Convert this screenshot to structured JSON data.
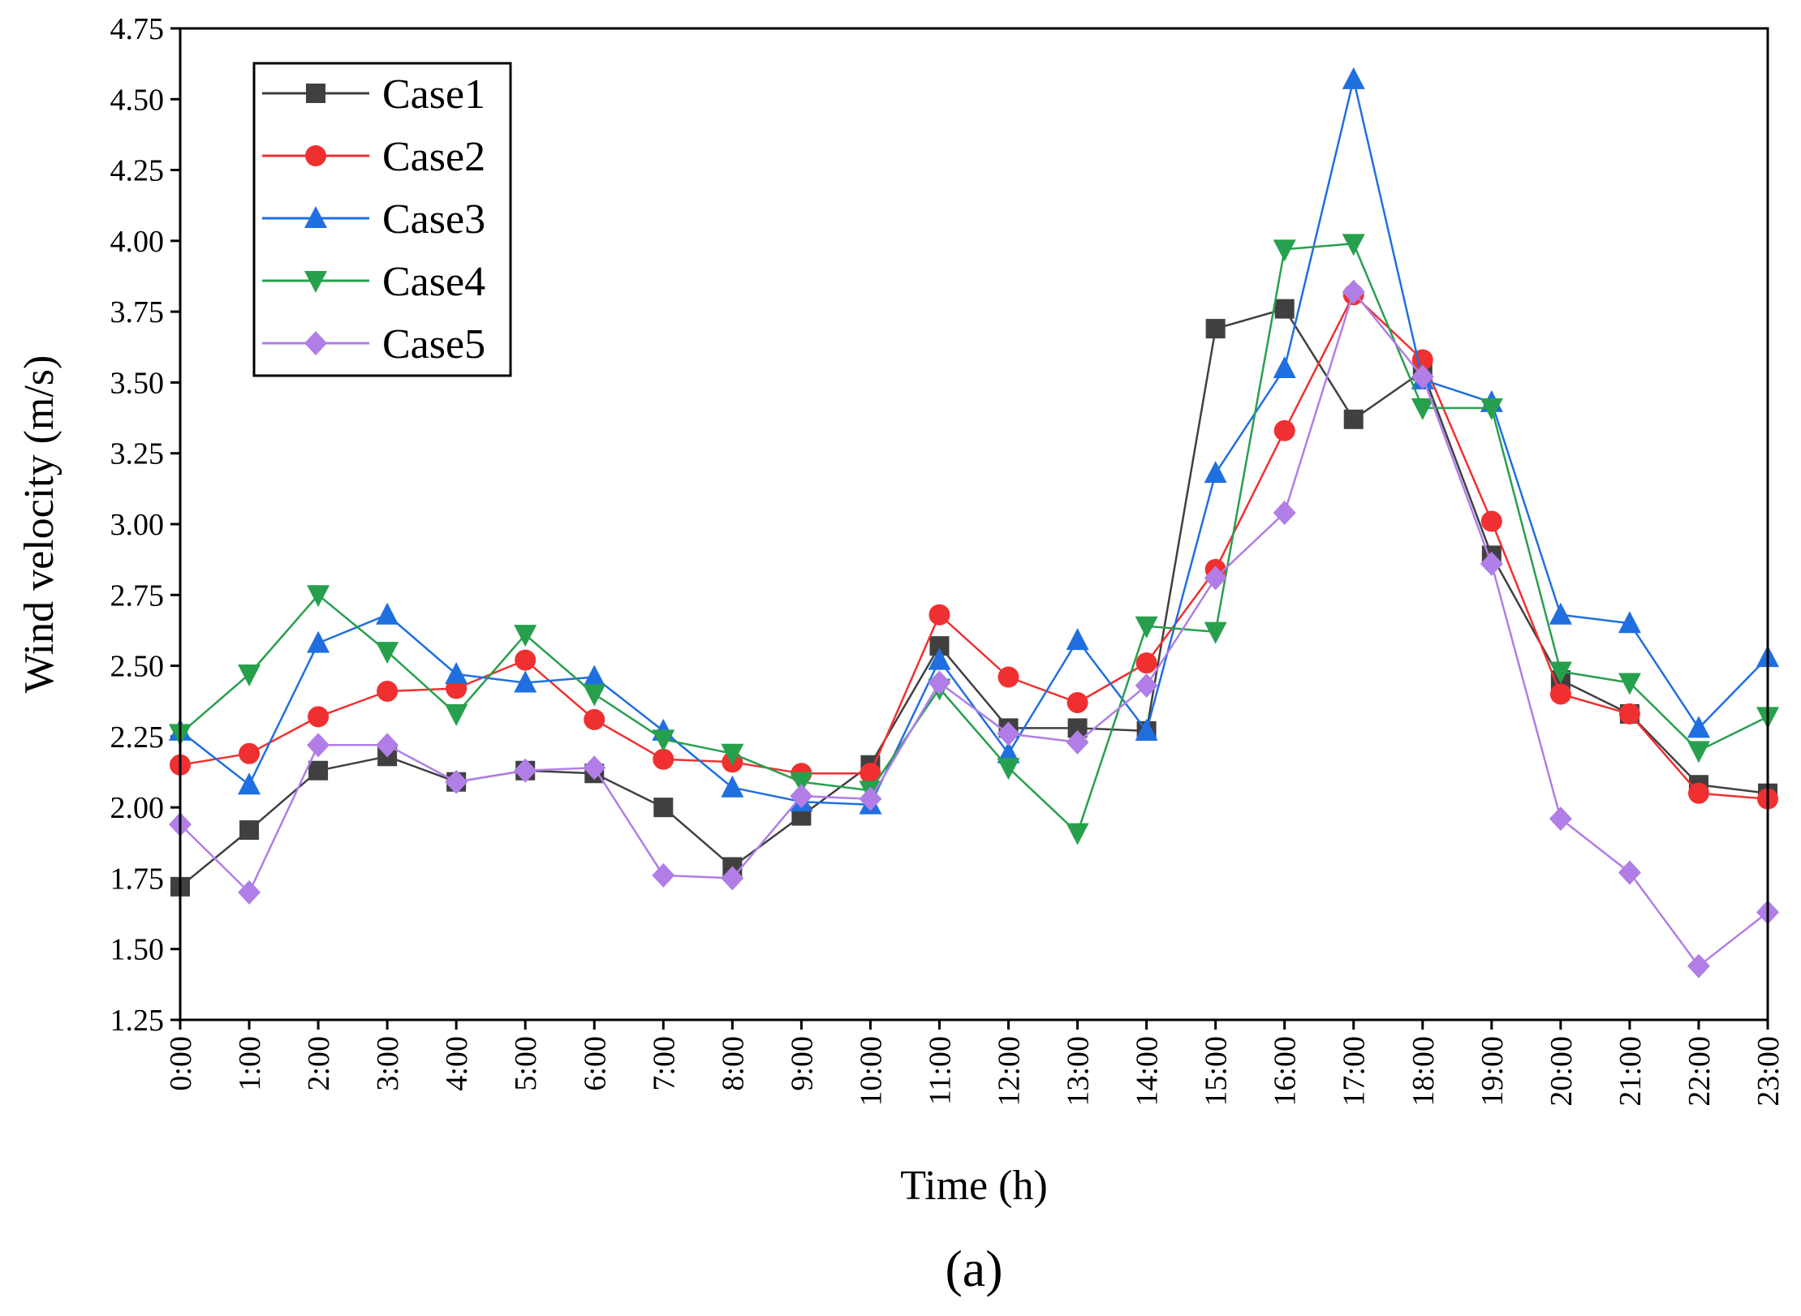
{
  "chart_data": {
    "type": "line",
    "title": "",
    "xlabel": "Time (h)",
    "ylabel": "Wind velocity (m/s)",
    "panel_label": "(a)",
    "ylim": [
      1.25,
      4.75
    ],
    "yticks": [
      "1.25",
      "1.50",
      "1.75",
      "2.00",
      "2.25",
      "2.50",
      "2.75",
      "3.00",
      "3.25",
      "3.50",
      "3.75",
      "4.00",
      "4.25",
      "4.50",
      "4.75"
    ],
    "categories": [
      "0:00",
      "1:00",
      "2:00",
      "3:00",
      "4:00",
      "5:00",
      "6:00",
      "7:00",
      "8:00",
      "9:00",
      "10:00",
      "11:00",
      "12:00",
      "13:00",
      "14:00",
      "15:00",
      "16:00",
      "17:00",
      "18:00",
      "19:00",
      "20:00",
      "21:00",
      "22:00",
      "23:00"
    ],
    "legend_position": "top-left",
    "series": [
      {
        "name": "Case1",
        "color": "#404040",
        "marker": "square",
        "values": [
          1.72,
          1.92,
          2.13,
          2.18,
          2.09,
          2.13,
          2.12,
          2.0,
          1.79,
          1.97,
          2.15,
          2.57,
          2.28,
          2.28,
          2.27,
          3.69,
          3.76,
          3.37,
          3.54,
          2.89,
          2.45,
          2.33,
          2.08,
          2.05
        ]
      },
      {
        "name": "Case2",
        "color": "#f03030",
        "marker": "circle",
        "values": [
          2.15,
          2.19,
          2.32,
          2.41,
          2.42,
          2.52,
          2.31,
          2.17,
          2.16,
          2.12,
          2.12,
          2.68,
          2.46,
          2.37,
          2.51,
          2.84,
          3.33,
          3.81,
          3.58,
          3.01,
          2.4,
          2.33,
          2.05,
          2.03
        ]
      },
      {
        "name": "Case3",
        "color": "#1f6fe0",
        "marker": "triangle-up",
        "values": [
          2.27,
          2.08,
          2.58,
          2.68,
          2.47,
          2.44,
          2.46,
          2.27,
          2.07,
          2.02,
          2.01,
          2.52,
          2.19,
          2.59,
          2.27,
          3.18,
          3.55,
          4.57,
          3.51,
          3.43,
          2.68,
          2.65,
          2.28,
          2.53
        ]
      },
      {
        "name": "Case4",
        "color": "#27a04d",
        "marker": "triangle-down",
        "values": [
          2.26,
          2.47,
          2.75,
          2.55,
          2.33,
          2.61,
          2.4,
          2.24,
          2.19,
          2.09,
          2.06,
          2.42,
          2.14,
          1.91,
          2.64,
          2.62,
          3.97,
          3.99,
          3.41,
          3.41,
          2.48,
          2.44,
          2.2,
          2.32
        ]
      },
      {
        "name": "Case5",
        "color": "#b07ee6",
        "marker": "diamond",
        "values": [
          1.94,
          1.7,
          2.22,
          2.22,
          2.09,
          2.13,
          2.14,
          1.76,
          1.75,
          2.04,
          2.03,
          2.44,
          2.26,
          2.23,
          2.43,
          2.81,
          3.04,
          3.82,
          3.52,
          2.86,
          1.96,
          1.77,
          1.44,
          1.63
        ]
      }
    ]
  }
}
